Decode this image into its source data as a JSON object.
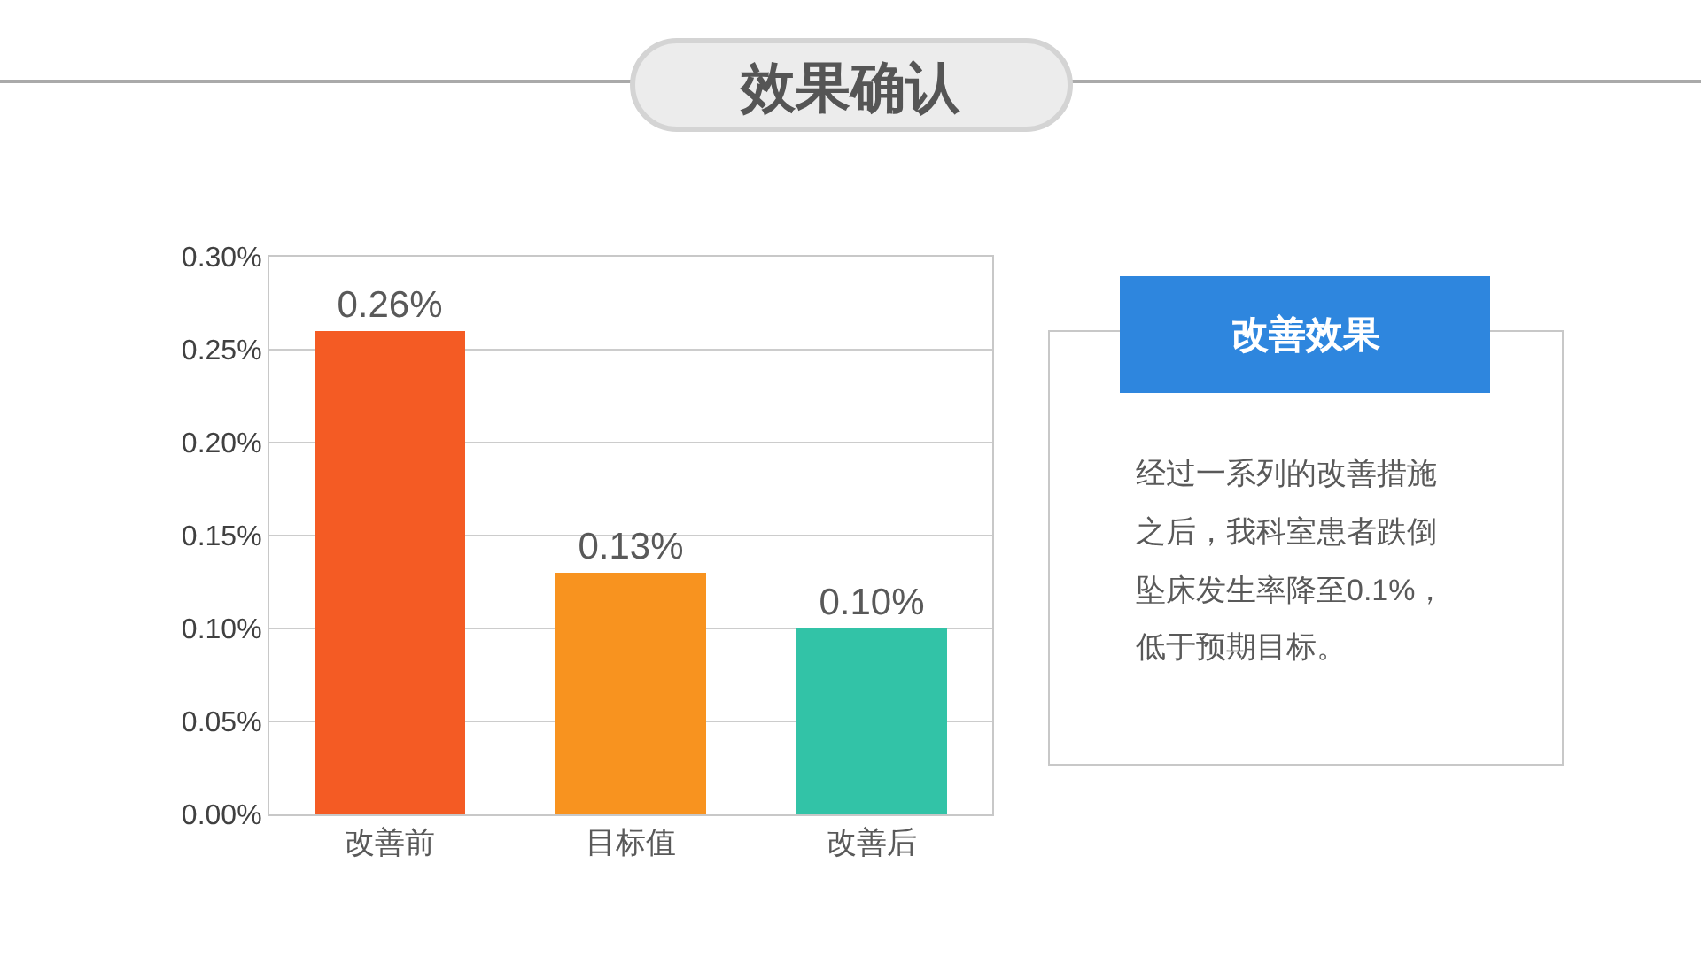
{
  "chart_data": [
    {
      "type": "bar",
      "title": "效果确认",
      "categories": [
        "改善前",
        "目标值",
        "改善后"
      ],
      "values": [
        0.26,
        0.13,
        0.1
      ],
      "colors": [
        "#f45b24",
        "#f8931f",
        "#32c3a7"
      ],
      "value_labels": [
        "0.26%",
        "0.13%",
        "0.10%"
      ],
      "ylim": [
        0,
        0.3
      ],
      "yticks": [
        {
          "value": 0,
          "label": "0.00%"
        },
        {
          "value": 0.05,
          "label": "0.05%"
        },
        {
          "value": 0.1,
          "label": "0.10%"
        },
        {
          "value": 0.15,
          "label": "0.15%"
        },
        {
          "value": 0.2,
          "label": "0.20%"
        },
        {
          "value": 0.25,
          "label": "0.25%"
        },
        {
          "value": 0.3,
          "label": "0.30%"
        }
      ],
      "grid": "y"
    },
    {
      "type": "other",
      "title": "改善效果",
      "annotations": [
        "经过一系列的改善措施之后，我科室患者跌倒坠床发生率降至0.1%，低于预期目标。"
      ]
    }
  ]
}
